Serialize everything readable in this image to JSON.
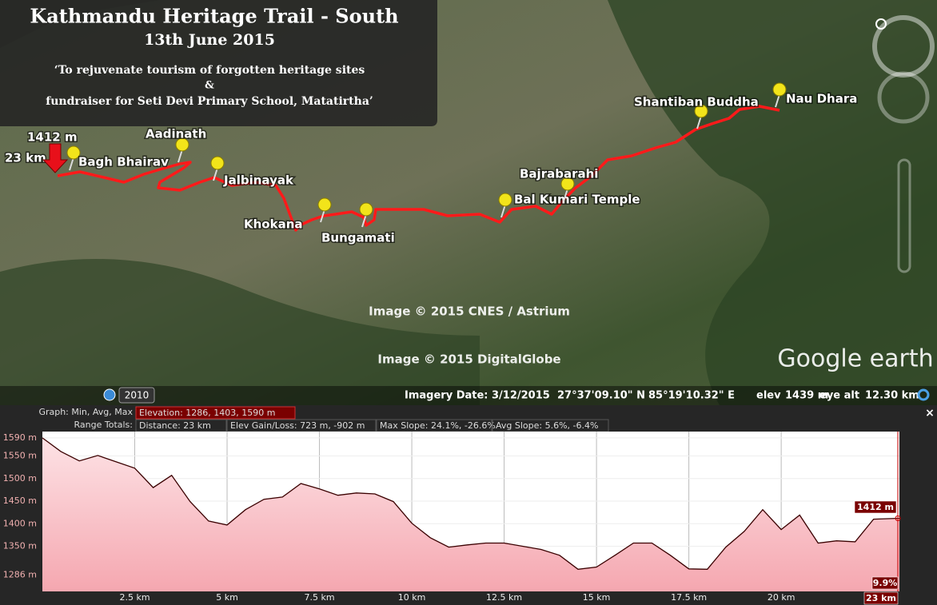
{
  "map": {
    "title": "Kathmandu Heritage Trail - South",
    "date": "13th June 2015",
    "subtitle_1": "‘To rejuvenate tourism of forgotten heritage sites",
    "subtitle_2": "&",
    "subtitle_3": "fundraiser for Seti Devi Primary School, Matatirtha’",
    "start_elevation": "1412 m",
    "start_distance": "23 km",
    "places": [
      "Bagh Bhairav",
      "Aadinath",
      "Jalbinayak",
      "Khokana",
      "Bungamati",
      "Bal Kumari Temple",
      "Bajrabarahi",
      "Shantiban Buddha",
      "Nau Dhara"
    ],
    "credits": [
      "Image © 2015 CNES / Astrium",
      "Image © 2015 DigitalGlobe"
    ],
    "logo": "Google earth",
    "historical_year": "2010"
  },
  "status_bar": {
    "imagery_date": "Imagery Date: 3/12/2015",
    "latitude": "27°37'09.10\" N",
    "longitude": "85°19'10.32\" E",
    "elev_label": "elev",
    "elev": "1439 m",
    "eye_alt_label": "eye alt",
    "eye_alt": "12.30 km"
  },
  "profile": {
    "graph_label": "Graph: Min, Avg, Max",
    "elevation": "Elevation: 1286, 1403, 1590 m",
    "range_label": "Range Totals:",
    "distance": "Distance: 23 km",
    "gain_loss": "Elev Gain/Loss: 723 m, -902 m",
    "max_slope": "Max Slope: 24.1%, -26.6%",
    "avg_slope": "Avg Slope: 5.6%, -6.4%",
    "type": "area",
    "color": "#f7b3bb",
    "line_color": "#3a0000",
    "x": [
      0,
      0.5,
      1,
      1.5,
      2,
      2.5,
      3,
      3.5,
      4,
      4.5,
      5,
      5.5,
      6,
      6.5,
      7,
      7.5,
      8,
      8.5,
      9,
      9.5,
      10,
      10.5,
      11,
      11.5,
      12,
      12.5,
      13,
      13.5,
      14,
      14.5,
      15,
      15.5,
      16,
      16.5,
      17,
      17.5,
      18,
      18.5,
      19,
      19.5,
      20,
      20.5,
      21,
      21.5,
      22,
      22.5,
      23.2
    ],
    "values": [
      1590,
      1560,
      1539,
      1551,
      1537,
      1523,
      1480,
      1507,
      1449,
      1406,
      1397,
      1431,
      1454,
      1459,
      1489,
      1477,
      1463,
      1468,
      1466,
      1449,
      1401,
      1369,
      1348,
      1353,
      1357,
      1357,
      1350,
      1343,
      1330,
      1299,
      1304,
      1330,
      1357,
      1357,
      1330,
      1300,
      1299,
      1348,
      1383,
      1431,
      1387,
      1419,
      1357,
      1362,
      1360,
      1410,
      1412
    ],
    "xlim": [
      0,
      23.2
    ],
    "ylim": [
      1250,
      1604
    ],
    "xticks": [
      {
        "value": 2.5,
        "label": "2.5 km"
      },
      {
        "value": 5,
        "label": "5 km"
      },
      {
        "value": 7.5,
        "label": "7.5 km"
      },
      {
        "value": 10,
        "label": "10 km"
      },
      {
        "value": 12.5,
        "label": "12.5 km"
      },
      {
        "value": 15,
        "label": "15 km"
      },
      {
        "value": 17.5,
        "label": "17.5 km"
      },
      {
        "value": 20,
        "label": "20 km"
      }
    ],
    "yticks": [
      {
        "value": 1286,
        "label": "1286 m"
      },
      {
        "value": 1350,
        "label": "1350 m"
      },
      {
        "value": 1400,
        "label": "1400 m"
      },
      {
        "value": 1450,
        "label": "1450 m"
      },
      {
        "value": 1500,
        "label": "1500 m"
      },
      {
        "value": 1550,
        "label": "1550 m"
      },
      {
        "value": 1590,
        "label": "1590 m"
      }
    ],
    "grid": true,
    "end_elevation": "1412 m",
    "end_slope": "9.9%",
    "end_distance": "23 km"
  }
}
